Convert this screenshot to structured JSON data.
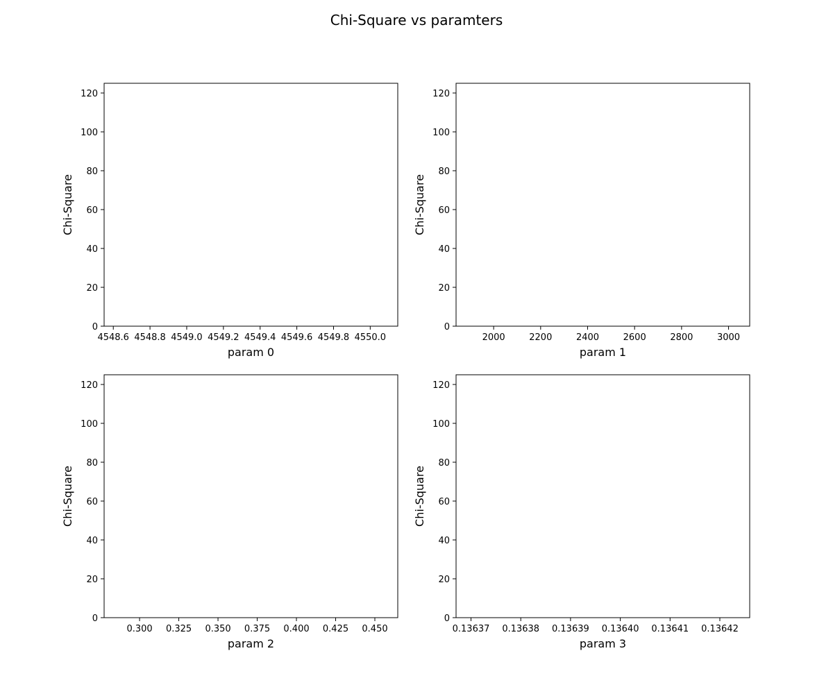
{
  "figure": {
    "title": "Chi-Square vs paramters"
  },
  "chart_data": [
    {
      "type": "scatter",
      "xlabel": "param 0",
      "ylabel": "Chi-Square",
      "xlim": [
        4548.55,
        4550.15
      ],
      "ylim": [
        0,
        125
      ],
      "xticks": [
        4548.6,
        4548.8,
        4549.0,
        4549.2,
        4549.4,
        4549.6,
        4549.8,
        4550.0
      ],
      "xtick_labels": [
        "4548.6",
        "4548.8",
        "4549.0",
        "4549.2",
        "4549.4",
        "4549.6",
        "4549.8",
        "4550.0"
      ],
      "yticks": [
        0,
        20,
        40,
        60,
        80,
        100,
        120
      ],
      "ytick_labels": [
        "0",
        "20",
        "40",
        "60",
        "80",
        "100",
        "120"
      ],
      "series": [],
      "grid": false
    },
    {
      "type": "scatter",
      "xlabel": "param 1",
      "ylabel": "Chi-Square",
      "xlim": [
        1840,
        3090
      ],
      "ylim": [
        0,
        125
      ],
      "xticks": [
        2000,
        2200,
        2400,
        2600,
        2800,
        3000
      ],
      "xtick_labels": [
        "2000",
        "2200",
        "2400",
        "2600",
        "2800",
        "3000"
      ],
      "yticks": [
        0,
        20,
        40,
        60,
        80,
        100,
        120
      ],
      "ytick_labels": [
        "0",
        "20",
        "40",
        "60",
        "80",
        "100",
        "120"
      ],
      "series": [],
      "grid": false
    },
    {
      "type": "scatter",
      "xlabel": "param 2",
      "ylabel": "Chi-Square",
      "xlim": [
        0.2774,
        0.4646
      ],
      "ylim": [
        0,
        125
      ],
      "xticks": [
        0.3,
        0.325,
        0.35,
        0.375,
        0.4,
        0.425,
        0.45
      ],
      "xtick_labels": [
        "0.300",
        "0.325",
        "0.350",
        "0.375",
        "0.400",
        "0.425",
        "0.450"
      ],
      "yticks": [
        0,
        20,
        40,
        60,
        80,
        100,
        120
      ],
      "ytick_labels": [
        "0",
        "20",
        "40",
        "60",
        "80",
        "100",
        "120"
      ],
      "series": [],
      "grid": false
    },
    {
      "type": "scatter",
      "xlabel": "param 3",
      "ylabel": "Chi-Square",
      "xlim": [
        0.136367,
        0.136426
      ],
      "ylim": [
        0,
        125
      ],
      "xticks": [
        0.13637,
        0.13638,
        0.13639,
        0.1364,
        0.13641,
        0.13642
      ],
      "xtick_labels": [
        "0.13637",
        "0.13638",
        "0.13639",
        "0.13640",
        "0.13641",
        "0.13642"
      ],
      "yticks": [
        0,
        20,
        40,
        60,
        80,
        100,
        120
      ],
      "ytick_labels": [
        "0",
        "20",
        "40",
        "60",
        "80",
        "100",
        "120"
      ],
      "series": [],
      "grid": false
    }
  ]
}
